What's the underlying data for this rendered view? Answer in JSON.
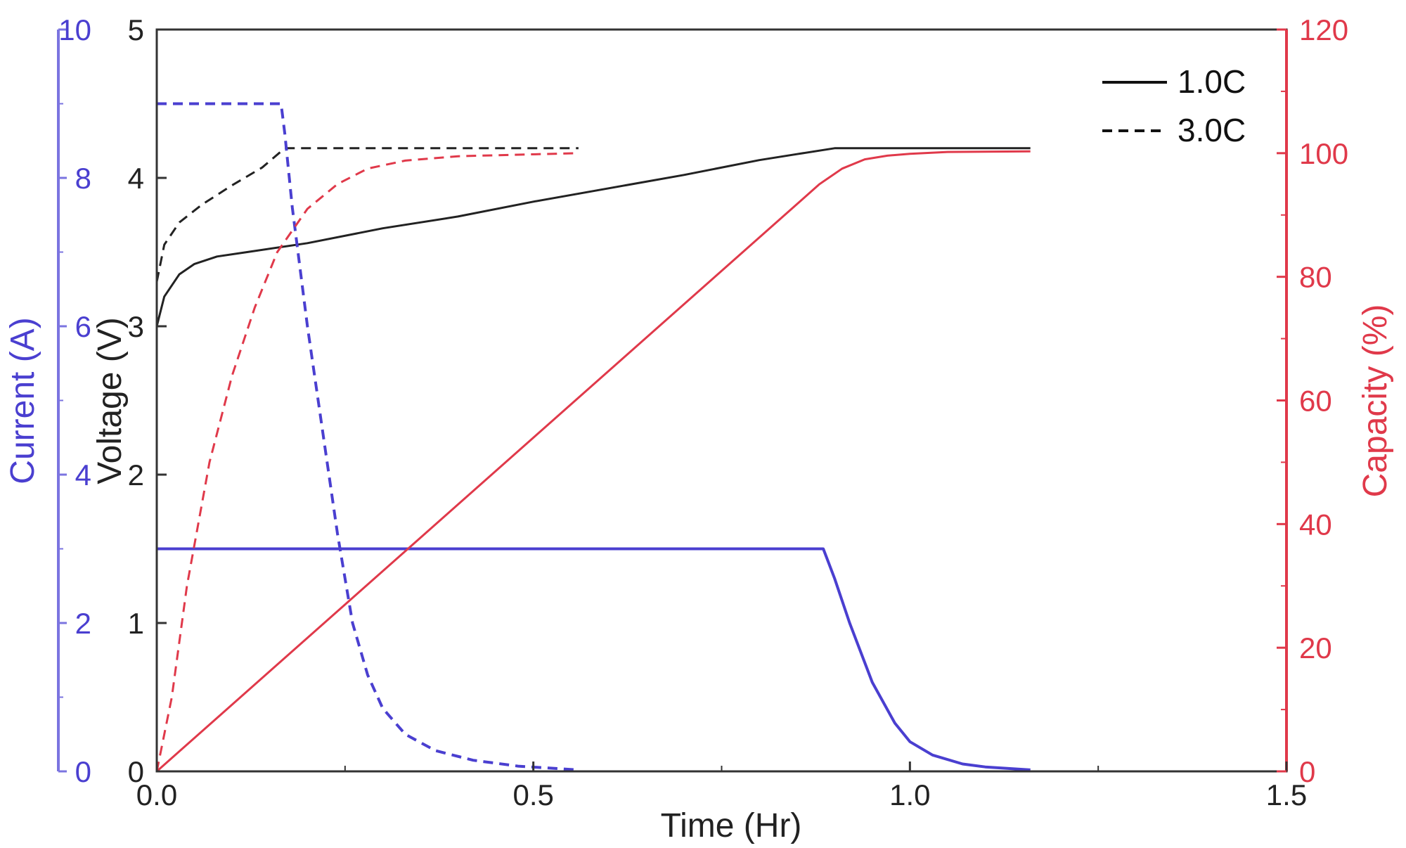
{
  "chart_data": {
    "type": "line",
    "title": "",
    "xlabel": "Time (Hr)",
    "ylabels": {
      "current": "Current (A)",
      "voltage": "Voltage (V)",
      "capacity": "Capacity (%)"
    },
    "xlim": [
      0,
      1.5
    ],
    "ylim": {
      "current": [
        0,
        10
      ],
      "voltage": [
        0,
        5
      ],
      "capacity": [
        0,
        120
      ]
    },
    "xticks": [
      "0.0",
      "0.5",
      "1.0",
      "1.5"
    ],
    "yticks": {
      "current": [
        "0",
        "2",
        "4",
        "6",
        "8",
        "10"
      ],
      "voltage": [
        "0",
        "1",
        "2",
        "3",
        "4",
        "5"
      ],
      "capacity": [
        "0",
        "20",
        "40",
        "60",
        "80",
        "100",
        "120"
      ]
    },
    "legend": {
      "placement": "top-right",
      "entries": [
        {
          "label": "1.0C",
          "style": "solid"
        },
        {
          "label": "3.0C",
          "style": "dashed"
        }
      ]
    },
    "colors": {
      "current": "#4a3fd0",
      "voltage": "#222222",
      "capacity": "#e0394a",
      "current_axis": "#7b74e0",
      "capacity_axis": "#e0394a"
    },
    "grid": false,
    "series": [
      {
        "name": "Voltage 1.0C",
        "axis": "voltage",
        "style": "solid",
        "x": [
          0,
          0.01,
          0.03,
          0.05,
          0.08,
          0.12,
          0.2,
          0.3,
          0.4,
          0.5,
          0.6,
          0.7,
          0.8,
          0.85,
          0.9,
          1.0,
          1.16
        ],
        "y": [
          3.0,
          3.2,
          3.35,
          3.42,
          3.47,
          3.5,
          3.56,
          3.66,
          3.74,
          3.84,
          3.93,
          4.02,
          4.12,
          4.16,
          4.2,
          4.2,
          4.2
        ]
      },
      {
        "name": "Voltage 3.0C",
        "axis": "voltage",
        "style": "dashed",
        "x": [
          0,
          0.01,
          0.03,
          0.06,
          0.1,
          0.14,
          0.17,
          0.2,
          0.3,
          0.4,
          0.56
        ],
        "y": [
          3.3,
          3.55,
          3.7,
          3.82,
          3.95,
          4.07,
          4.2,
          4.2,
          4.2,
          4.2,
          4.2
        ]
      },
      {
        "name": "Current 1.0C",
        "axis": "current",
        "style": "solid",
        "x": [
          0,
          0.885,
          0.9,
          0.92,
          0.95,
          0.98,
          1.0,
          1.03,
          1.07,
          1.1,
          1.16
        ],
        "y": [
          3.0,
          3.0,
          2.6,
          2.0,
          1.2,
          0.65,
          0.4,
          0.22,
          0.1,
          0.06,
          0.02
        ]
      },
      {
        "name": "Current 3.0C",
        "axis": "current",
        "style": "dashed",
        "x": [
          0,
          0.165,
          0.17,
          0.18,
          0.2,
          0.22,
          0.24,
          0.26,
          0.28,
          0.3,
          0.33,
          0.37,
          0.42,
          0.48,
          0.56
        ],
        "y": [
          9.0,
          9.0,
          8.6,
          7.6,
          6.0,
          4.6,
          3.2,
          2.0,
          1.3,
          0.85,
          0.5,
          0.28,
          0.15,
          0.07,
          0.02
        ]
      },
      {
        "name": "Capacity 1.0C",
        "axis": "capacity",
        "style": "solid",
        "x": [
          0,
          0.88,
          0.91,
          0.94,
          0.97,
          1.0,
          1.05,
          1.16
        ],
        "y": [
          0,
          95,
          97.5,
          99,
          99.6,
          99.9,
          100.2,
          100.3
        ]
      },
      {
        "name": "Capacity 3.0C",
        "axis": "capacity",
        "style": "dashed",
        "x": [
          0,
          0.02,
          0.04,
          0.07,
          0.1,
          0.13,
          0.16,
          0.2,
          0.24,
          0.28,
          0.33,
          0.4,
          0.56
        ],
        "y": [
          0,
          12,
          30,
          50,
          64,
          75,
          84,
          91,
          95,
          97.5,
          98.8,
          99.5,
          100
        ]
      }
    ]
  }
}
